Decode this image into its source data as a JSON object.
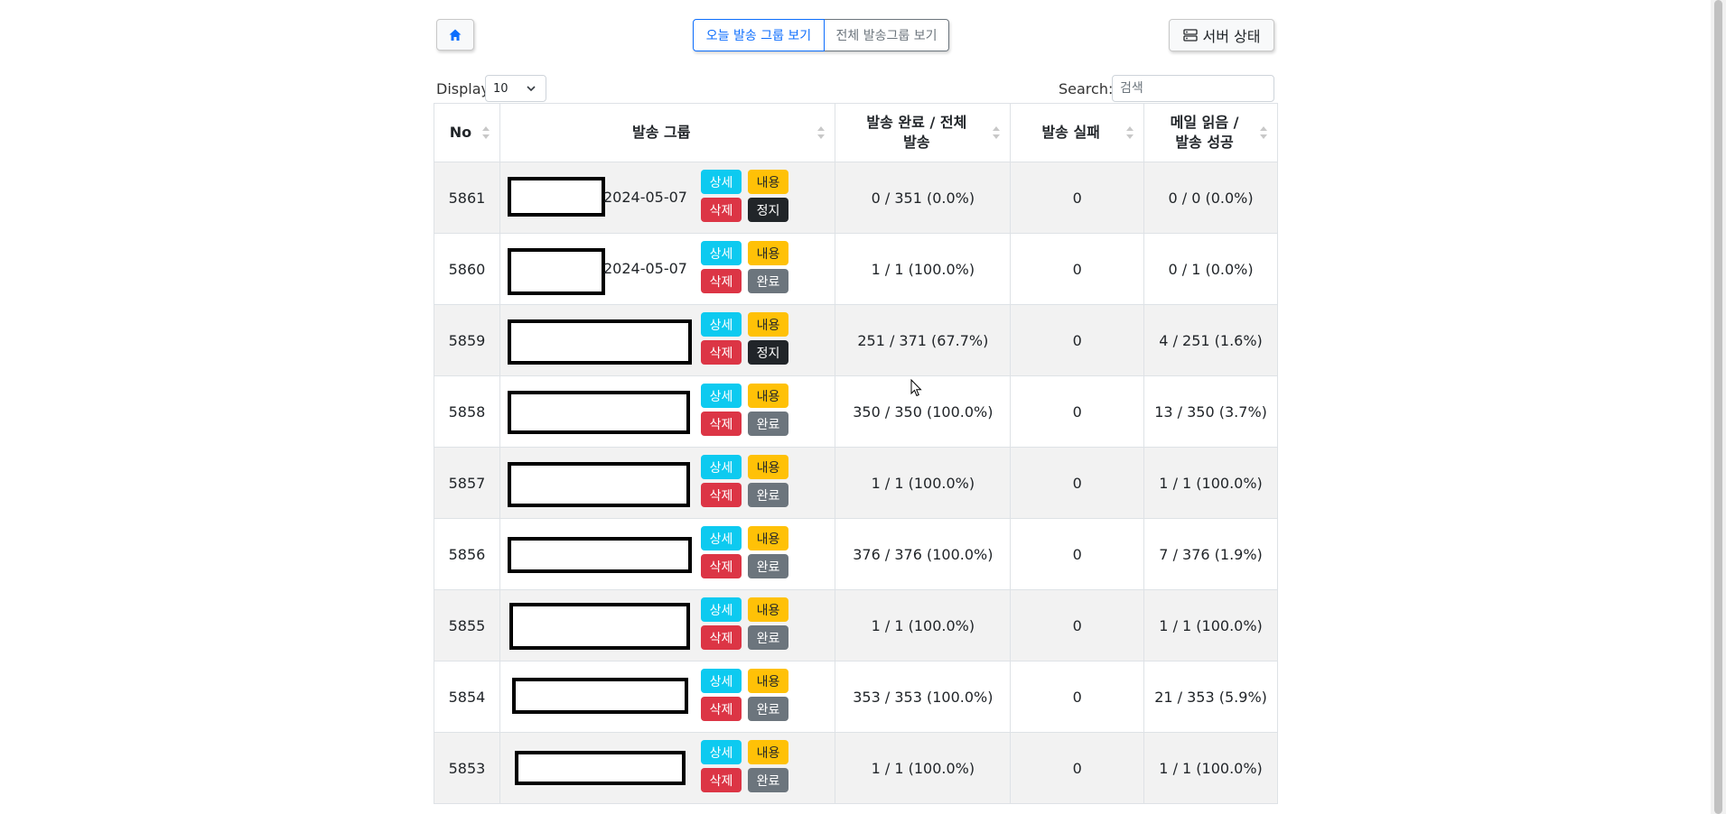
{
  "toolbar": {
    "home_icon": "home-icon",
    "today_groups_label": "오늘 발송 그룹 보기",
    "all_groups_label": "전체 발송그룹 보기",
    "server_status_label": "서버 상태",
    "server_icon": "server-icon"
  },
  "controls": {
    "display_label": "Display",
    "display_value": "10",
    "search_label": "Search:",
    "search_placeholder": "검색"
  },
  "table": {
    "headers": {
      "no": "No",
      "group": "발송 그룹",
      "sent_line1": "발송 완료 / 전체",
      "sent_line2": "발송",
      "failed": "발송 실패",
      "read_line1": "메일 읽음 /",
      "read_line2": "발송 성공"
    },
    "buttons": {
      "detail": "상세",
      "content": "내용",
      "delete": "삭제",
      "stop": "정지",
      "done": "완료"
    },
    "rows": [
      {
        "no": "5861",
        "date": "2024-05-07",
        "status": "stop",
        "sent": "0 / 351 (0.0%)",
        "failed": "0",
        "read": "0 / 0 (0.0%)"
      },
      {
        "no": "5860",
        "date": "2024-05-07",
        "status": "done",
        "sent": "1 / 1 (100.0%)",
        "failed": "0",
        "read": "0 / 1 (0.0%)"
      },
      {
        "no": "5859",
        "date": "",
        "status": "stop",
        "sent": "251 / 371 (67.7%)",
        "failed": "0",
        "read": "4 / 251 (1.6%)"
      },
      {
        "no": "5858",
        "date": "",
        "status": "done",
        "sent": "350 / 350 (100.0%)",
        "failed": "0",
        "read": "13 / 350 (3.7%)"
      },
      {
        "no": "5857",
        "date": "",
        "status": "done",
        "sent": "1 / 1 (100.0%)",
        "failed": "0",
        "read": "1 / 1 (100.0%)"
      },
      {
        "no": "5856",
        "date": "",
        "status": "done",
        "sent": "376 / 376 (100.0%)",
        "failed": "0",
        "read": "7 / 376 (1.9%)"
      },
      {
        "no": "5855",
        "date": "",
        "status": "done",
        "sent": "1 / 1 (100.0%)",
        "failed": "0",
        "read": "1 / 1 (100.0%)"
      },
      {
        "no": "5854",
        "date": "",
        "status": "done",
        "sent": "353 / 353 (100.0%)",
        "failed": "0",
        "read": "21 / 353 (5.9%)"
      },
      {
        "no": "5853",
        "date": "",
        "status": "done",
        "sent": "1 / 1 (100.0%)",
        "failed": "0",
        "read": "1 / 1 (100.0%)"
      }
    ]
  }
}
